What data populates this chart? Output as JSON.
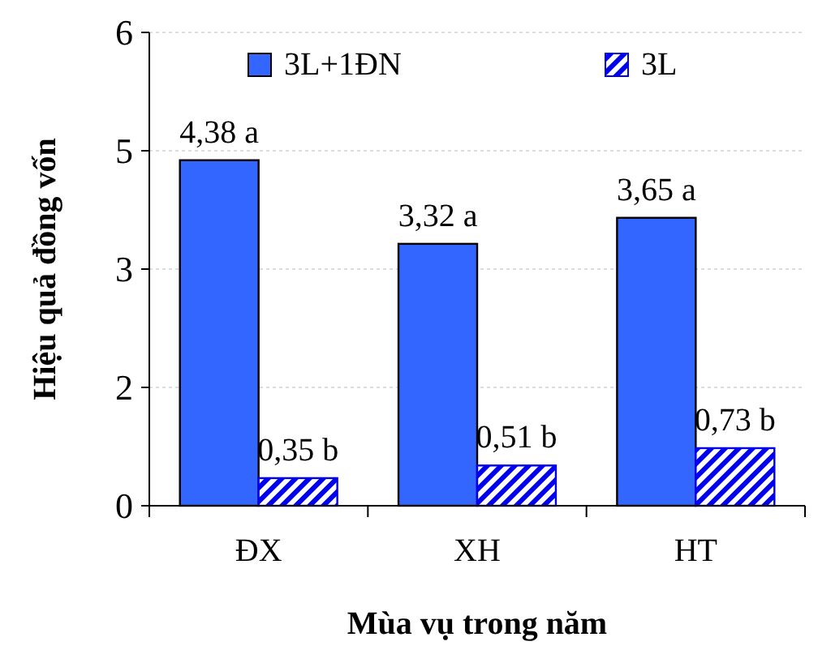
{
  "chart_data": {
    "type": "bar",
    "xlabel": "Mùa vụ trong năm",
    "ylabel": "Hiệu quả đồng vốn",
    "categories": [
      "ĐX",
      "XH",
      "HT"
    ],
    "series": [
      {
        "name": "3L+1ĐN",
        "color": "#3366ff",
        "values": [
          4.38,
          3.32,
          3.65
        ],
        "value_labels": [
          "4,38 a",
          "3,32 a",
          "3,65 a"
        ]
      },
      {
        "name": "3L",
        "color": "#0000ee",
        "values": [
          0.35,
          0.51,
          0.73
        ],
        "value_labels": [
          "0,35 b",
          "0,51 b",
          "0,73 b"
        ]
      }
    ],
    "ylim": [
      0,
      6
    ],
    "yticks": [
      0,
      {
        "value": 1.5,
        "label": "2"
      },
      3,
      {
        "value": 4.5,
        "label": "5"
      },
      6
    ],
    "grid": "y",
    "legend": "top"
  }
}
